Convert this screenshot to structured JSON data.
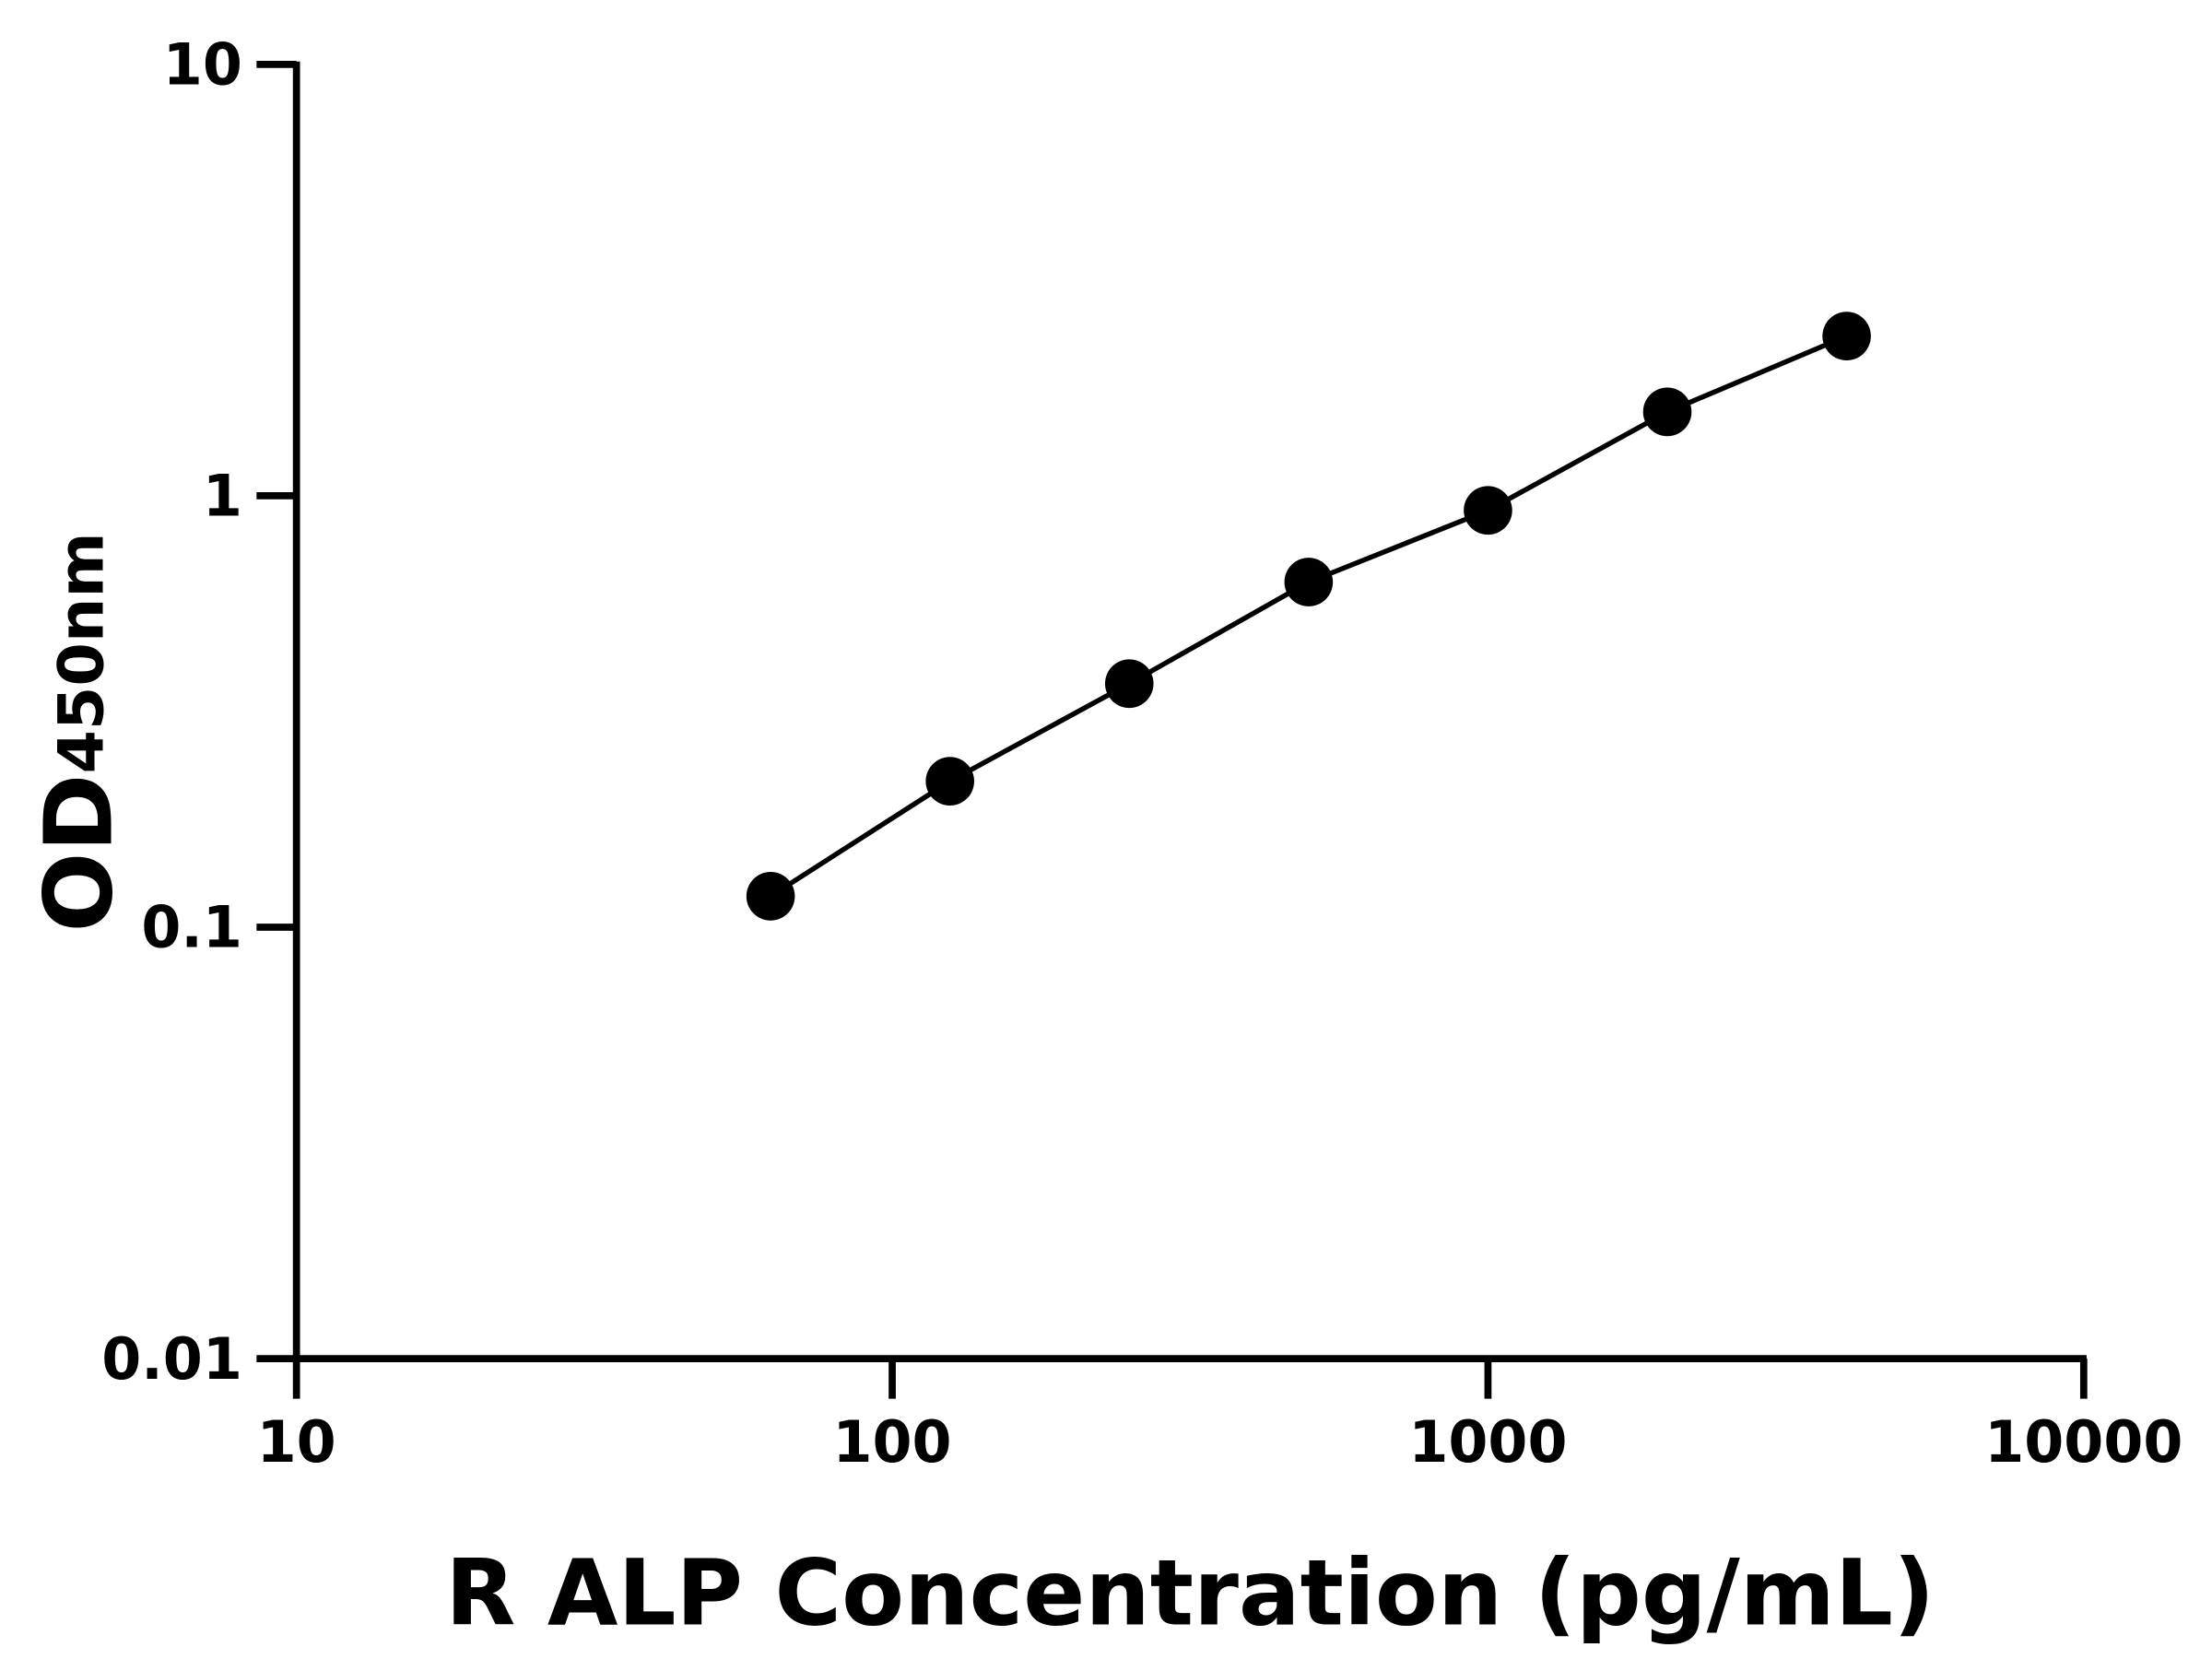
{
  "chart_data": {
    "type": "line",
    "title": "",
    "xlabel": "R ALP Concentration (pg/mL)",
    "ylabel_main": "OD",
    "ylabel_sub": "450nm",
    "x_scale": "log",
    "y_scale": "log",
    "xlim": [
      10,
      10000
    ],
    "ylim": [
      0.01,
      10
    ],
    "x_ticks": [
      "10",
      "100",
      "1000",
      "10000"
    ],
    "y_ticks": [
      "0.01",
      "0.1",
      "1",
      "10"
    ],
    "grid": false,
    "markers": "filled circles",
    "color": "#000000",
    "series": [
      {
        "x": [
          62.5,
          125,
          250,
          500,
          1000,
          2000,
          4000
        ],
        "y": [
          0.118,
          0.218,
          0.367,
          0.631,
          0.925,
          1.565,
          2.345
        ]
      }
    ]
  }
}
